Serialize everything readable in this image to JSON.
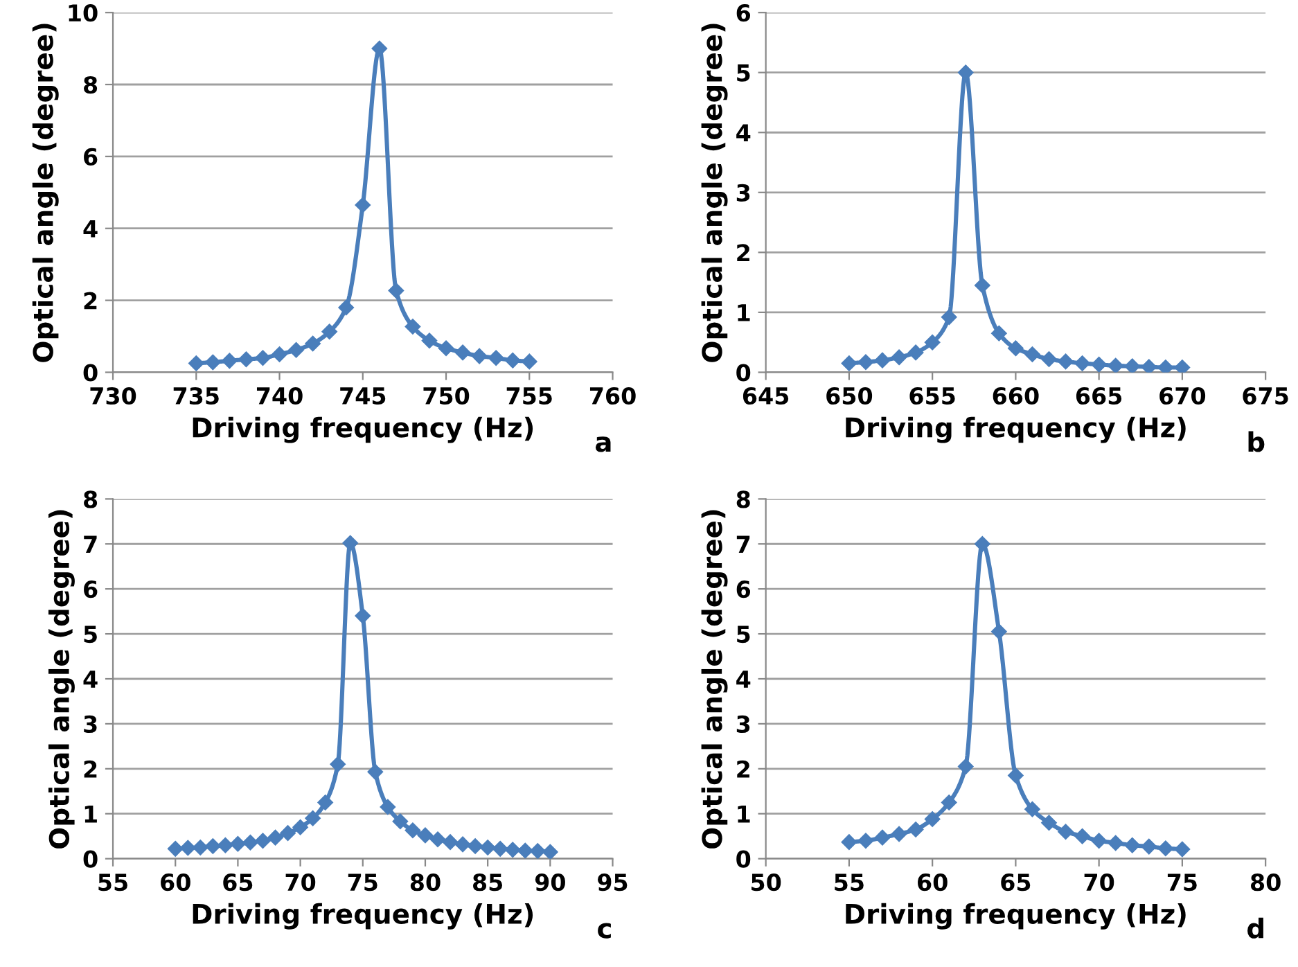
{
  "chart_data": [
    {
      "type": "line",
      "xlabel": "Driving frequency (Hz)",
      "ylabel": "Optical angle (degree)",
      "annotations": [
        "a"
      ],
      "xlim": [
        730,
        760
      ],
      "xticks": [
        730,
        735,
        740,
        745,
        750,
        755,
        760
      ],
      "ylim": [
        0,
        10
      ],
      "yticks": [
        0,
        2,
        4,
        6,
        8,
        10
      ],
      "grid": "y",
      "marker": "diamond",
      "line_style": "solid",
      "series": [
        {
          "color": "#4a7ebb",
          "x": [
            735,
            736,
            737,
            738,
            739,
            740,
            741,
            742,
            743,
            744,
            745,
            746,
            747,
            748,
            749,
            750,
            751,
            752,
            753,
            754,
            755
          ],
          "values": [
            0.25,
            0.28,
            0.32,
            0.36,
            0.4,
            0.5,
            0.62,
            0.8,
            1.13,
            1.8,
            4.65,
            9.0,
            2.27,
            1.27,
            0.88,
            0.67,
            0.55,
            0.45,
            0.4,
            0.33,
            0.3
          ]
        }
      ]
    },
    {
      "type": "line",
      "xlabel": "Driving frequency (Hz)",
      "ylabel": "Optical angle (degree)",
      "annotations": [
        "b"
      ],
      "xlim": [
        645,
        675
      ],
      "xticks": [
        645,
        650,
        655,
        660,
        665,
        670,
        675
      ],
      "ylim": [
        0,
        6
      ],
      "yticks": [
        0,
        1,
        2,
        3,
        4,
        5,
        6
      ],
      "grid": "y",
      "marker": "diamond",
      "line_style": "solid",
      "series": [
        {
          "color": "#4a7ebb",
          "x": [
            650,
            651,
            652,
            653,
            654,
            655,
            656,
            657,
            658,
            659,
            660,
            661,
            662,
            663,
            664,
            665,
            666,
            667,
            668,
            669,
            670
          ],
          "values": [
            0.15,
            0.17,
            0.2,
            0.25,
            0.33,
            0.5,
            0.92,
            5.0,
            1.45,
            0.65,
            0.4,
            0.3,
            0.22,
            0.18,
            0.15,
            0.13,
            0.11,
            0.1,
            0.09,
            0.08,
            0.08
          ]
        }
      ]
    },
    {
      "type": "line",
      "xlabel": "Driving frequency (Hz)",
      "ylabel": "Optical angle (degree)",
      "annotations": [
        "c"
      ],
      "xlim": [
        55,
        95
      ],
      "xticks": [
        55,
        60,
        65,
        70,
        75,
        80,
        85,
        90,
        95
      ],
      "ylim": [
        0,
        8
      ],
      "yticks": [
        0,
        1,
        2,
        3,
        4,
        5,
        6,
        7,
        8
      ],
      "grid": "y",
      "marker": "diamond",
      "line_style": "solid",
      "series": [
        {
          "color": "#4a7ebb",
          "x": [
            60,
            61,
            62,
            63,
            64,
            65,
            66,
            67,
            68,
            69,
            70,
            71,
            72,
            73,
            74,
            75,
            76,
            77,
            78,
            79,
            80,
            81,
            82,
            83,
            84,
            85,
            86,
            87,
            88,
            89,
            90
          ],
          "values": [
            0.22,
            0.24,
            0.25,
            0.28,
            0.3,
            0.33,
            0.36,
            0.4,
            0.47,
            0.57,
            0.7,
            0.9,
            1.25,
            2.1,
            7.02,
            5.4,
            1.93,
            1.15,
            0.83,
            0.63,
            0.52,
            0.43,
            0.37,
            0.32,
            0.28,
            0.25,
            0.22,
            0.2,
            0.18,
            0.17,
            0.15
          ]
        }
      ]
    },
    {
      "type": "line",
      "xlabel": "Driving frequency (Hz)",
      "ylabel": "Optical angle (degree)",
      "annotations": [
        "d"
      ],
      "xlim": [
        50,
        80
      ],
      "xticks": [
        50,
        55,
        60,
        65,
        70,
        75,
        80
      ],
      "ylim": [
        0,
        8
      ],
      "yticks": [
        0,
        1,
        2,
        3,
        4,
        5,
        6,
        7,
        8
      ],
      "grid": "y",
      "marker": "diamond",
      "line_style": "solid",
      "series": [
        {
          "color": "#4a7ebb",
          "x": [
            55,
            56,
            57,
            58,
            59,
            60,
            61,
            62,
            63,
            64,
            65,
            66,
            67,
            68,
            69,
            70,
            71,
            72,
            73,
            74,
            75
          ],
          "values": [
            0.37,
            0.4,
            0.47,
            0.55,
            0.65,
            0.88,
            1.25,
            2.05,
            7.0,
            5.05,
            1.85,
            1.1,
            0.8,
            0.6,
            0.5,
            0.4,
            0.35,
            0.3,
            0.27,
            0.23,
            0.21
          ]
        }
      ]
    }
  ]
}
